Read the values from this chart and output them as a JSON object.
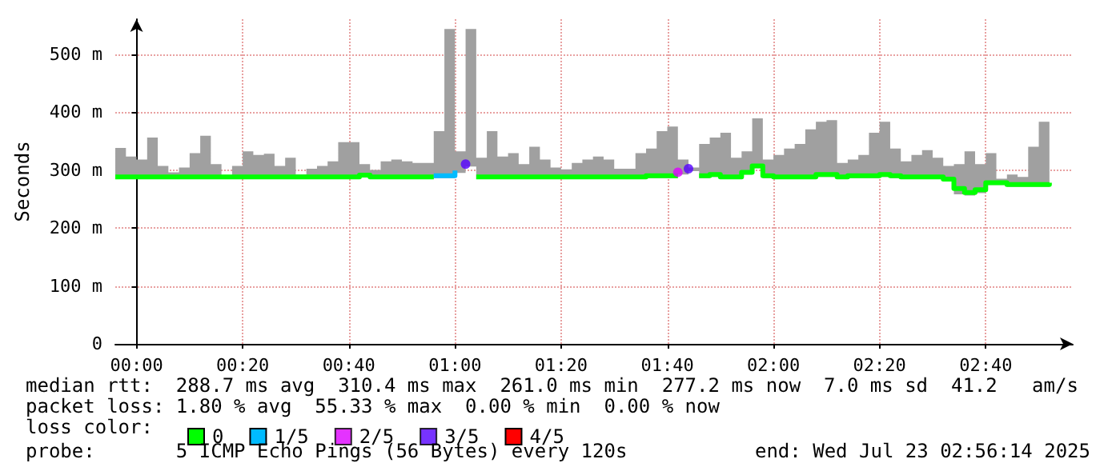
{
  "chart_data": {
    "type": "step",
    "ylabel": "Seconds",
    "legend_title": "loss color:",
    "legend": "bottom left",
    "grid": true,
    "xlim": [
      -0.0667,
      2.94
    ],
    "xticks": [
      {
        "value": 0,
        "label": "00:00"
      },
      {
        "value": 0.3333,
        "label": "00:20"
      },
      {
        "value": 0.6667,
        "label": "00:40"
      },
      {
        "value": 1,
        "label": "01:00"
      },
      {
        "value": 1.3333,
        "label": "01:20"
      },
      {
        "value": 1.6667,
        "label": "01:40"
      },
      {
        "value": 2,
        "label": "02:00"
      },
      {
        "value": 2.3333,
        "label": "02:20"
      },
      {
        "value": 2.6667,
        "label": "02:40"
      }
    ],
    "ylim": [
      0,
      560
    ],
    "yticks": [
      0,
      {
        "value": 100,
        "label": "100 m"
      },
      {
        "value": 200,
        "label": "200 m"
      },
      {
        "value": 300,
        "label": "300 m"
      },
      {
        "value": 400,
        "label": "400 m"
      },
      {
        "value": 500,
        "label": "500 m"
      }
    ],
    "x": [
      -0.0667,
      -0.0333,
      0,
      0.0333,
      0.0667,
      0.1,
      0.1333,
      0.1667,
      0.2,
      0.2333,
      0.2667,
      0.3,
      0.3333,
      0.3667,
      0.4,
      0.4333,
      0.4667,
      0.5,
      0.5333,
      0.5667,
      0.6,
      0.6333,
      0.6667,
      0.7,
      0.7333,
      0.7667,
      0.8,
      0.8333,
      0.8667,
      0.9,
      0.9333,
      0.9667,
      1,
      1.0333,
      1.0667,
      1.1,
      1.1333,
      1.1667,
      1.2,
      1.2333,
      1.2667,
      1.3,
      1.3333,
      1.3667,
      1.4,
      1.4333,
      1.4667,
      1.5,
      1.5333,
      1.5667,
      1.6,
      1.6333,
      1.6667,
      1.7,
      1.7333,
      1.7667,
      1.8,
      1.8333,
      1.8667,
      1.9,
      1.9333,
      1.9667,
      2,
      2.0333,
      2.0667,
      2.1,
      2.1333,
      2.1667,
      2.2,
      2.2333,
      2.2667,
      2.3,
      2.3333,
      2.3667,
      2.4,
      2.4333,
      2.4667,
      2.5,
      2.5333,
      2.5667,
      2.6,
      2.6333,
      2.6667,
      2.7,
      2.7333,
      2.7667,
      2.8,
      2.8333,
      2.8667
    ],
    "series": [
      {
        "name": "0",
        "color": "#00ff00",
        "values": [
          288,
          288,
          288,
          288,
          288,
          288,
          288,
          288,
          288,
          288,
          288,
          288,
          288,
          288,
          288,
          288,
          288,
          288,
          288,
          288,
          288,
          288,
          288,
          291,
          288,
          288,
          288,
          288,
          288,
          288,
          null,
          null,
          null,
          null,
          288,
          288,
          288,
          288,
          288,
          288,
          288,
          288,
          288,
          288,
          288,
          288,
          288,
          288,
          288,
          288,
          290,
          290,
          290,
          null,
          null,
          290,
          292,
          288,
          288,
          296,
          307,
          290,
          288,
          288,
          288,
          288,
          292,
          292,
          288,
          290,
          290,
          290,
          292,
          290,
          288,
          288,
          288,
          288,
          284,
          268,
          261,
          266,
          278,
          278,
          275,
          275,
          275,
          275,
          278
        ],
        "lower": [
          284,
          284,
          284,
          284,
          284,
          284,
          284,
          284,
          284,
          284,
          284,
          284,
          284,
          284,
          284,
          284,
          284,
          284,
          284,
          284,
          284,
          284,
          284,
          287,
          284,
          284,
          284,
          284,
          284,
          284,
          286,
          286,
          295,
          306,
          284,
          284,
          284,
          284,
          284,
          284,
          284,
          284,
          284,
          284,
          284,
          284,
          284,
          284,
          284,
          284,
          286,
          286,
          286,
          292,
          298,
          286,
          288,
          284,
          284,
          292,
          303,
          286,
          284,
          284,
          284,
          284,
          288,
          288,
          284,
          286,
          286,
          286,
          288,
          286,
          284,
          284,
          284,
          284,
          280,
          258,
          256,
          260,
          274,
          274,
          271,
          271,
          271,
          271,
          274
        ],
        "upper": [
          338,
          323,
          318,
          356,
          307,
          296,
          304,
          329,
          359,
          310,
          291,
          307,
          332,
          326,
          328,
          307,
          321,
          292,
          302,
          307,
          315,
          348,
          348,
          310,
          300,
          315,
          318,
          315,
          312,
          312,
          367,
          543,
          332,
          543,
          321,
          367,
          323,
          329,
          310,
          340,
          318,
          304,
          301,
          312,
          318,
          323,
          318,
          302,
          302,
          329,
          337,
          367,
          375,
          318,
          304,
          345,
          356,
          364,
          321,
          332,
          389,
          318,
          326,
          337,
          345,
          370,
          383,
          386,
          312,
          318,
          326,
          364,
          383,
          337,
          315,
          326,
          334,
          321,
          307,
          310,
          332,
          310,
          329,
          285,
          292,
          288,
          340,
          383,
          367
        ]
      },
      {
        "name": "1/5",
        "color": "#00bbff",
        "values": [
          null,
          null,
          null,
          null,
          null,
          null,
          null,
          null,
          null,
          null,
          null,
          null,
          null,
          null,
          null,
          null,
          null,
          null,
          null,
          null,
          null,
          null,
          null,
          null,
          null,
          null,
          null,
          null,
          null,
          null,
          290,
          290,
          299,
          null,
          null,
          null,
          null,
          null,
          null,
          null,
          null,
          null,
          null,
          null,
          null,
          null,
          null,
          null,
          null,
          null,
          null,
          null,
          null,
          null,
          null,
          null,
          null,
          null,
          null,
          null,
          null,
          null,
          null,
          null,
          null,
          null,
          null,
          null,
          null,
          null,
          null,
          null,
          null,
          null,
          null,
          null,
          null,
          null,
          null,
          null,
          null,
          null,
          null,
          null,
          null,
          null,
          null,
          null,
          null
        ]
      },
      {
        "name": "2/5",
        "type": "scatter",
        "color": "#dd00ff",
        "marker": "circle",
        "values": [
          null,
          null,
          null,
          null,
          null,
          null,
          null,
          null,
          null,
          null,
          null,
          null,
          null,
          null,
          null,
          null,
          null,
          null,
          null,
          null,
          null,
          null,
          null,
          null,
          null,
          null,
          null,
          null,
          null,
          null,
          null,
          null,
          null,
          null,
          null,
          null,
          null,
          null,
          null,
          null,
          null,
          null,
          null,
          null,
          null,
          null,
          null,
          null,
          null,
          null,
          null,
          null,
          null,
          296,
          null,
          null,
          null,
          null,
          null,
          null,
          null,
          null,
          null,
          null,
          null,
          null,
          null,
          null,
          null,
          null,
          null,
          null,
          null,
          null,
          null,
          null,
          null,
          null,
          null,
          null,
          null,
          null,
          null,
          null,
          null,
          null,
          null,
          null,
          null
        ]
      },
      {
        "name": "3/5",
        "type": "scatter",
        "color": "#5500ff",
        "marker": "circle",
        "values": [
          null,
          null,
          null,
          null,
          null,
          null,
          null,
          null,
          null,
          null,
          null,
          null,
          null,
          null,
          null,
          null,
          null,
          null,
          null,
          null,
          null,
          null,
          null,
          null,
          null,
          null,
          null,
          null,
          null,
          null,
          null,
          null,
          null,
          310,
          null,
          null,
          null,
          null,
          null,
          null,
          null,
          null,
          null,
          null,
          null,
          null,
          null,
          null,
          null,
          null,
          null,
          null,
          null,
          null,
          302,
          null,
          null,
          null,
          null,
          null,
          null,
          null,
          null,
          null,
          null,
          null,
          null,
          null,
          null,
          null,
          null,
          null,
          null,
          null,
          null,
          null,
          null,
          null,
          null,
          null,
          null,
          null,
          null,
          null,
          null,
          null,
          null,
          null,
          null
        ]
      },
      {
        "name": "4/5",
        "color": "#ff0000",
        "values": [
          null,
          null,
          null,
          null,
          null,
          null,
          null,
          null,
          null,
          null,
          null,
          null,
          null,
          null,
          null,
          null,
          null,
          null,
          null,
          null,
          null,
          null,
          null,
          null,
          null,
          null,
          null,
          null,
          null,
          null,
          null,
          null,
          null,
          null,
          null,
          null,
          null,
          null,
          null,
          null,
          null,
          null,
          null,
          null,
          null,
          null,
          null,
          null,
          null,
          null,
          null,
          null,
          null,
          null,
          null,
          null,
          null,
          null,
          null,
          null,
          null,
          null,
          null,
          null,
          null,
          null,
          null,
          null,
          null,
          null,
          null,
          null,
          null,
          null,
          null,
          null,
          null,
          null,
          null,
          null,
          null,
          null,
          null,
          null,
          null,
          null,
          null,
          null,
          null
        ]
      }
    ],
    "annotations": [
      "median rtt:  288.7 ms avg  310.4 ms max  261.0 ms min  277.2 ms now  7.0 ms sd  41.2   am/s",
      "packet loss: 1.80 % avg  55.33 % max  0.00 % min  0.00 % now",
      "probe:       5 ICMP Echo Pings (56 Bytes) every 120s",
      "end: Wed Jul 23 02:56:14 2025"
    ]
  }
}
